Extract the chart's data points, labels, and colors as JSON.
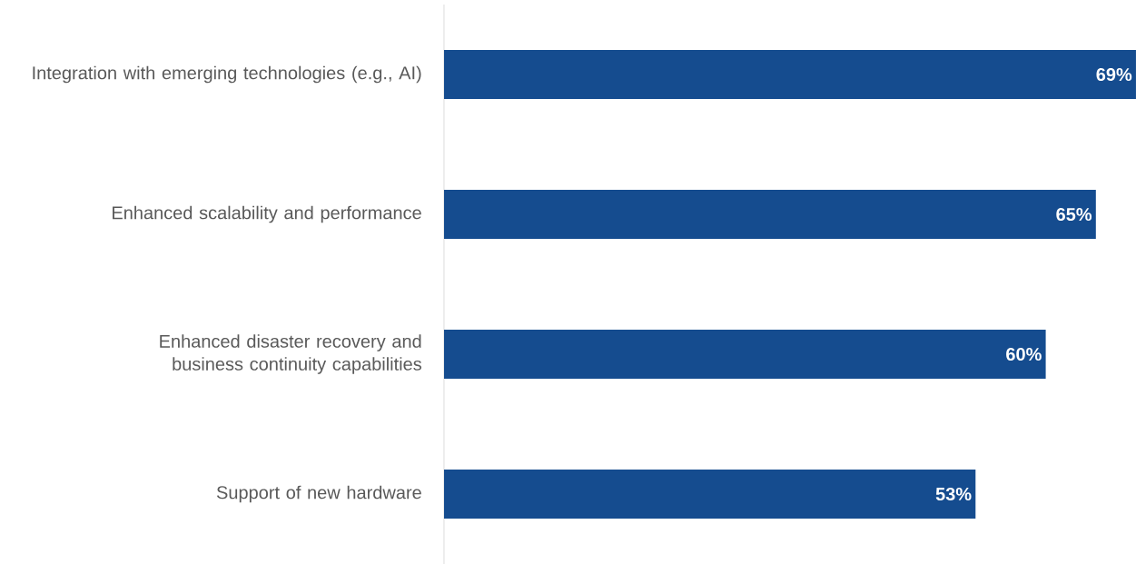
{
  "chart_data": {
    "type": "bar",
    "orientation": "horizontal",
    "categories": [
      "Integration with emerging technologies (e.g., AI)",
      "Enhanced scalability and performance",
      "Enhanced disaster recovery and business continuity capabilities",
      "Support of new hardware"
    ],
    "values": [
      69,
      65,
      60,
      53
    ],
    "value_labels": [
      "69%",
      "65%",
      "60%",
      "53%"
    ],
    "color": "#154c8f"
  }
}
